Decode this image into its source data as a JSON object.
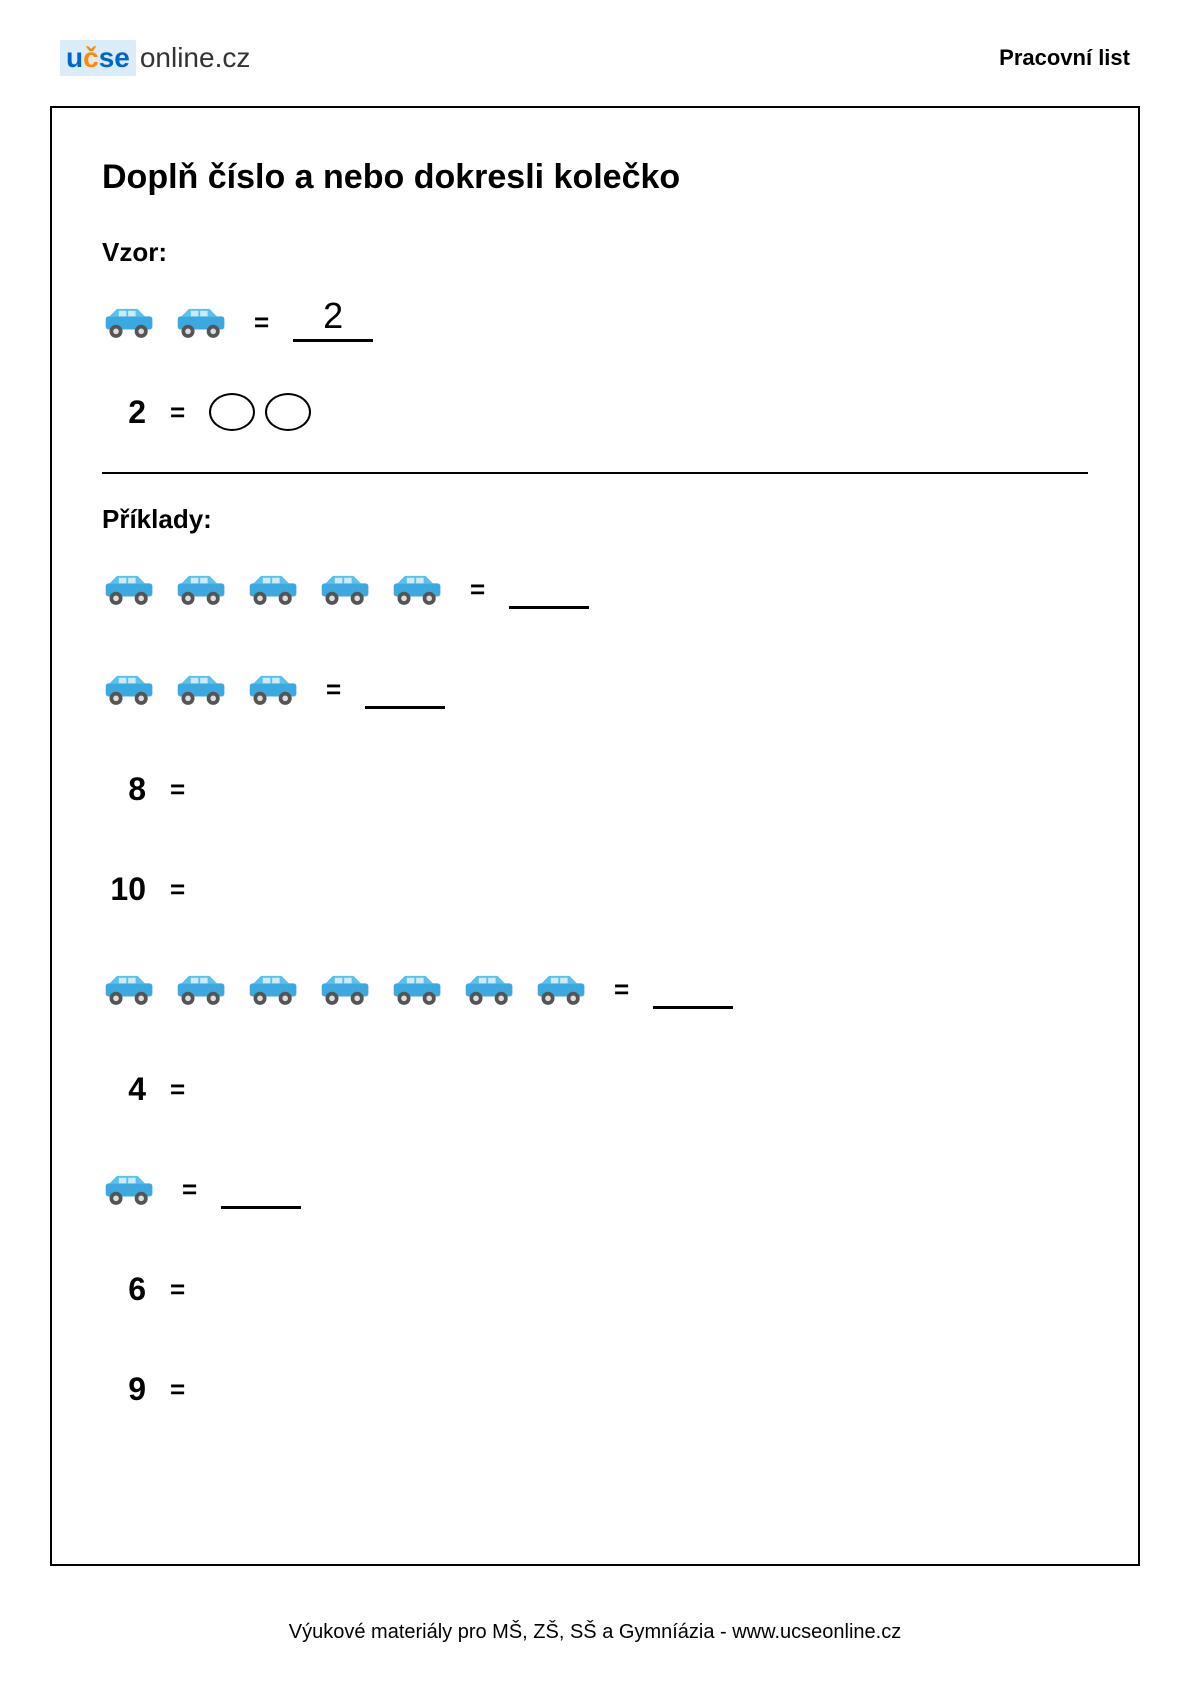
{
  "header": {
    "logo_ucse_u": "u",
    "logo_ucse_c": "č",
    "logo_ucse_se": "se",
    "logo_online": "online.cz",
    "label": "Pracovní list"
  },
  "title": "Doplň číslo a nebo dokresli kolečko",
  "example_section": {
    "label": "Vzor:",
    "row1": {
      "car_count": 2,
      "answer": "2"
    },
    "row2": {
      "number": "2",
      "circle_count": 2
    }
  },
  "exercises_section": {
    "label": "Příklady:",
    "rows": [
      {
        "type": "cars_to_number",
        "car_count": 5,
        "answer": ""
      },
      {
        "type": "cars_to_number",
        "car_count": 3,
        "answer": ""
      },
      {
        "type": "number_to_draw",
        "number": "8"
      },
      {
        "type": "number_to_draw",
        "number": "10"
      },
      {
        "type": "cars_to_number",
        "car_count": 7,
        "answer": ""
      },
      {
        "type": "number_to_draw",
        "number": "4"
      },
      {
        "type": "cars_to_number",
        "car_count": 1,
        "answer": ""
      },
      {
        "type": "number_to_draw",
        "number": "6"
      },
      {
        "type": "number_to_draw",
        "number": "9"
      }
    ]
  },
  "footer": "Výukové materiály pro MŠ, ZŠ, SŠ a Gymníázia - www.ucseonline.cz",
  "styling": {
    "car_color_body": "#3ba9e0",
    "car_color_top": "#5cc0ed",
    "car_wheel_color": "#555555",
    "car_wheel_hub": "#dddddd",
    "logo_blue": "#0066cc",
    "logo_orange": "#ff8800",
    "logo_bg": "#d9ecf7"
  }
}
